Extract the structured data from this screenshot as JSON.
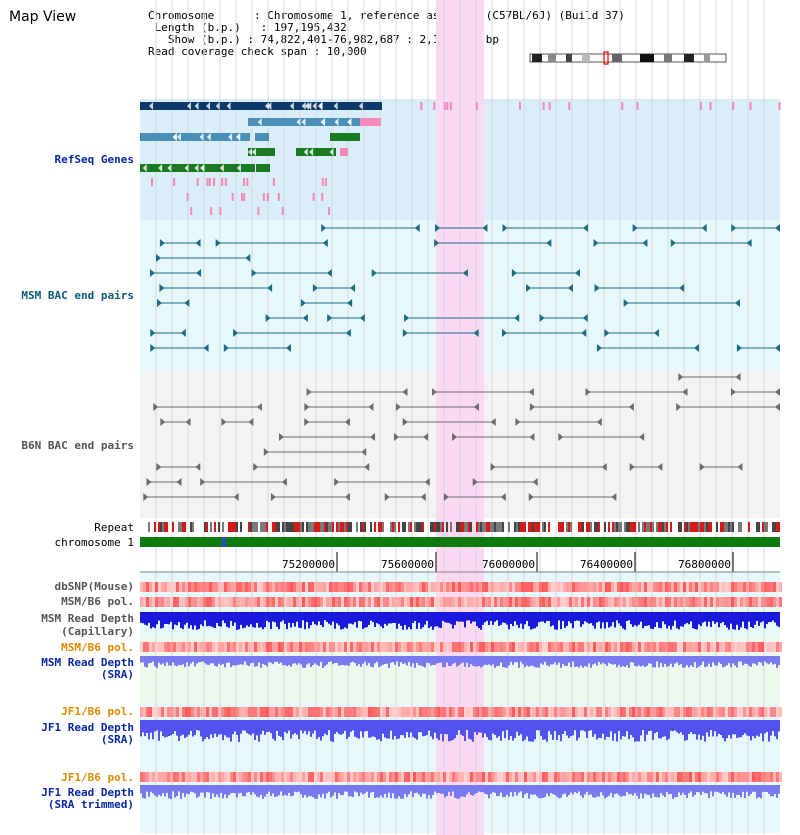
{
  "title": "Map View",
  "info": {
    "chromosome_key": "Chromosome",
    "chromosome_val": "Chromosome 1, reference assembly (C57BL/6J) (Build 37)",
    "length_key": "Length (b.p.)",
    "length_val": "197,195,432",
    "show_key": "Show (b.p.)",
    "show_val": "74,822,401-76,982,687 : 2,160,287 bp",
    "span_key": "Read coverage check span",
    "span_val": "10,000"
  },
  "tracks": {
    "refseq": "RefSeq Genes",
    "msm_bac": "MSM BAC end pairs",
    "b6n_bac": "B6N BAC end pairs",
    "repeat": "Repeat",
    "chromosome": "chromosome 1",
    "dbsnp": "dbSNP(Mouse)",
    "msm_b6_pol": "MSM/B6 pol.",
    "msm_depth_cap_1": "MSM Read Depth",
    "msm_depth_cap_2": "(Capillary)",
    "msm_b6_pol_2": "MSM/B6 pol.",
    "msm_depth_sra_1": "MSM Read Depth",
    "msm_depth_sra_2": "(SRA)",
    "jf1_b6_pol": "JF1/B6 pol.",
    "jf1_depth_sra_1": "JF1 Read Depth",
    "jf1_depth_sra_2": "(SRA)",
    "jf1_b6_pol_2": "JF1/B6 pol.",
    "jf1_depth_trim_1": "JF1 Read Depth",
    "jf1_depth_trim_2": "(SRA trimmed)"
  },
  "ruler_ticks": [
    "75200000",
    "75600000",
    "76000000",
    "76400000",
    "76800000"
  ],
  "colors": {
    "refseq_bg": "#d9eef8",
    "bac_bg": "#e6f8fa",
    "b6n_bg": "#f3f3f3",
    "highlight": "#fbd9f3",
    "dark_navy": "#0d3a6b",
    "steel_blue": "#4a8fb8",
    "dark_green": "#1a7a22",
    "pink": "#f38ab9",
    "teal_line": "#1d6c86",
    "gray_line": "#6c6c6c",
    "chromosome_green": "#0c7a0c",
    "depth_blue": "#1a1adc",
    "depth_light": "#7a7af0"
  }
}
